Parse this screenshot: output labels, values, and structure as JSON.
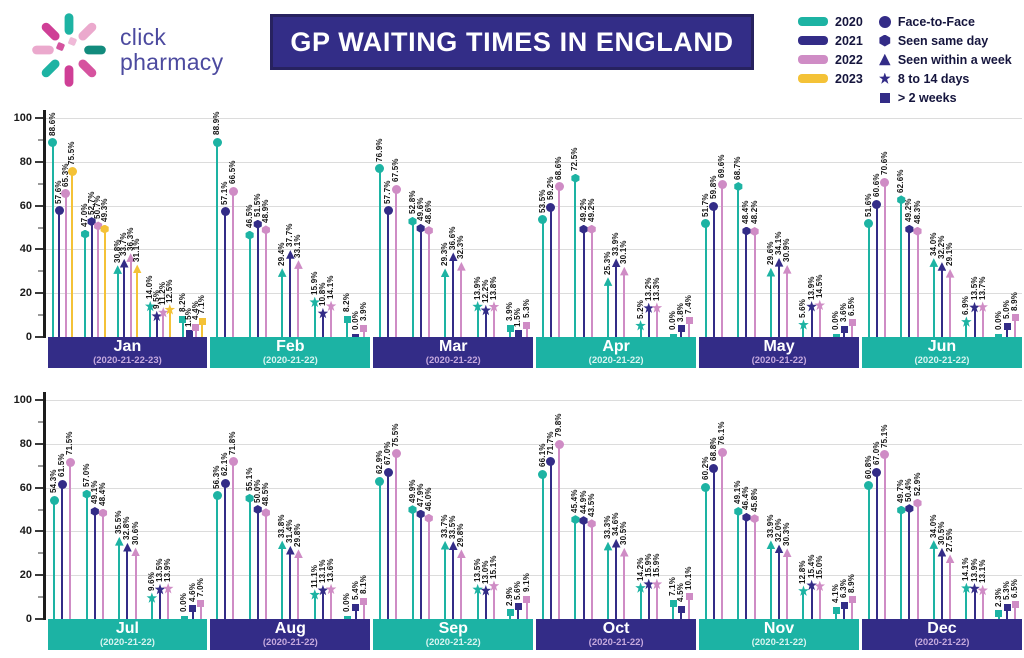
{
  "header": {
    "logo": {
      "line1": "click",
      "line2": "pharmacy"
    },
    "title": "GP WAITING TIMES IN ENGLAND",
    "legend_years": [
      {
        "label": "2020",
        "color_key": "teal"
      },
      {
        "label": "2021",
        "color_key": "navy"
      },
      {
        "label": "2022",
        "color_key": "pink"
      },
      {
        "label": "2023",
        "color_key": "yellow"
      }
    ],
    "legend_markers": [
      {
        "label": "Face-to-Face",
        "shape": "circle"
      },
      {
        "label": "Seen same day",
        "shape": "hexagon"
      },
      {
        "label": "Seen within a week",
        "shape": "triangle"
      },
      {
        "label": "8 to 14 days",
        "shape": "star"
      },
      {
        "label": "> 2 weeks",
        "shape": "square"
      }
    ]
  },
  "colors": {
    "teal": "#1db3a3",
    "navy": "#332c87",
    "pink": "#cf8cc5",
    "yellow": "#f4c237",
    "grid": "#dcdcdc",
    "bar_navy": "#332c87",
    "bar_teal": "#1cb3a4",
    "sub_on_navy": "#c5a9dd",
    "sub_on_teal": "#d8f4f0"
  },
  "chart_data": {
    "type": "bar",
    "style": "grouped lollipop stems with shaped markers",
    "title": "GP WAITING TIMES IN ENGLAND",
    "unit": "%",
    "ylim": [
      0,
      100
    ],
    "yticks": [
      0,
      20,
      40,
      60,
      80,
      100
    ],
    "grid": true,
    "legend_position": "top-right",
    "years": [
      "2020",
      "2021",
      "2022",
      "2023"
    ],
    "wait_categories": [
      "Face-to-Face",
      "Seen same day",
      "Seen within a week",
      "8 to 14 days",
      "> 2 weeks"
    ],
    "months": [
      {
        "label": "Jan",
        "sublabel": "(2020-21-22-23)",
        "bar": "navy",
        "years": [
          "2020",
          "2021",
          "2022",
          "2023"
        ],
        "values": [
          [
            88.6,
            57.6,
            65.3,
            75.5
          ],
          [
            47.0,
            52.7,
            50.7,
            49.3
          ],
          [
            30.8,
            33.7,
            36.3,
            31.1
          ],
          [
            14.0,
            9.5,
            11.2,
            12.5
          ],
          [
            8.2,
            1.5,
            4.4,
            7.1
          ]
        ]
      },
      {
        "label": "Feb",
        "sublabel": "(2020-21-22)",
        "bar": "teal",
        "years": [
          "2020",
          "2021",
          "2022"
        ],
        "values": [
          [
            88.9,
            57.1,
            66.5
          ],
          [
            46.5,
            51.5,
            48.9
          ],
          [
            29.4,
            37.7,
            33.1
          ],
          [
            15.9,
            10.8,
            14.1
          ],
          [
            8.2,
            0.0,
            3.9
          ]
        ]
      },
      {
        "label": "Mar",
        "sublabel": "(2020-21-22)",
        "bar": "navy",
        "years": [
          "2020",
          "2021",
          "2022"
        ],
        "values": [
          [
            76.9,
            57.7,
            67.5
          ],
          [
            52.8,
            49.6,
            48.6
          ],
          [
            29.3,
            36.6,
            32.3
          ],
          [
            13.9,
            12.2,
            13.8
          ],
          [
            3.9,
            1.5,
            5.3
          ]
        ]
      },
      {
        "label": "Apr",
        "sublabel": "(2020-21-22)",
        "bar": "teal",
        "years": [
          "2020",
          "2021",
          "2022"
        ],
        "values": [
          [
            53.5,
            59.2,
            68.6
          ],
          [
            72.5,
            49.2,
            49.2
          ],
          [
            25.3,
            33.9,
            30.1
          ],
          [
            5.2,
            13.2,
            13.3
          ],
          [
            0.0,
            3.8,
            7.4
          ]
        ]
      },
      {
        "label": "May",
        "sublabel": "(2020-21-22)",
        "bar": "navy",
        "years": [
          "2020",
          "2021",
          "2022"
        ],
        "values": [
          [
            51.7,
            59.8,
            69.6
          ],
          [
            68.7,
            48.4,
            48.2
          ],
          [
            29.6,
            34.1,
            30.9
          ],
          [
            5.6,
            13.9,
            14.5
          ],
          [
            0.0,
            3.6,
            6.5
          ]
        ]
      },
      {
        "label": "Jun",
        "sublabel": "(2020-21-22)",
        "bar": "teal",
        "years": [
          "2020",
          "2021",
          "2022"
        ],
        "values": [
          [
            51.6,
            60.6,
            70.6
          ],
          [
            62.6,
            49.2,
            48.3
          ],
          [
            34.0,
            32.2,
            29.1
          ],
          [
            6.9,
            13.5,
            13.7
          ],
          [
            0.0,
            5.0,
            8.9
          ]
        ]
      },
      {
        "label": "Jul",
        "sublabel": "(2020-21-22)",
        "bar": "teal",
        "years": [
          "2020",
          "2021",
          "2022"
        ],
        "values": [
          [
            54.3,
            61.5,
            71.5
          ],
          [
            57.0,
            49.1,
            48.4
          ],
          [
            35.5,
            32.8,
            30.6
          ],
          [
            9.6,
            13.5,
            13.9
          ],
          [
            0.0,
            4.6,
            7.0
          ]
        ]
      },
      {
        "label": "Aug",
        "sublabel": "(2020-21-22)",
        "bar": "navy",
        "years": [
          "2020",
          "2021",
          "2022"
        ],
        "values": [
          [
            56.3,
            62.1,
            71.8
          ],
          [
            55.1,
            50.0,
            48.5
          ],
          [
            33.8,
            31.4,
            29.8
          ],
          [
            11.1,
            13.1,
            13.6
          ],
          [
            0.0,
            5.4,
            8.1
          ]
        ]
      },
      {
        "label": "Sep",
        "sublabel": "(2020-21-22)",
        "bar": "teal",
        "years": [
          "2020",
          "2021",
          "2022"
        ],
        "values": [
          [
            62.9,
            67.0,
            75.5
          ],
          [
            49.9,
            47.9,
            46.0
          ],
          [
            33.7,
            33.5,
            29.8
          ],
          [
            13.5,
            13.0,
            15.1
          ],
          [
            2.9,
            5.6,
            9.1
          ]
        ]
      },
      {
        "label": "Oct",
        "sublabel": "(2020-21-22)",
        "bar": "navy",
        "years": [
          "2020",
          "2021",
          "2022"
        ],
        "values": [
          [
            66.1,
            71.7,
            79.8
          ],
          [
            45.4,
            44.9,
            43.5
          ],
          [
            33.3,
            34.6,
            30.5
          ],
          [
            14.2,
            15.9,
            15.9
          ],
          [
            7.1,
            4.5,
            10.1
          ]
        ]
      },
      {
        "label": "Nov",
        "sublabel": "(2020-21-22)",
        "bar": "teal",
        "years": [
          "2020",
          "2021",
          "2022"
        ],
        "values": [
          [
            60.2,
            68.8,
            76.1
          ],
          [
            49.1,
            46.4,
            45.8
          ],
          [
            33.9,
            32.0,
            30.3
          ],
          [
            12.8,
            15.4,
            15.0
          ],
          [
            4.1,
            6.3,
            8.9
          ]
        ]
      },
      {
        "label": "Dec",
        "sublabel": "(2020-21-22)",
        "bar": "navy",
        "years": [
          "2020",
          "2021",
          "2022"
        ],
        "values": [
          [
            60.8,
            67.0,
            75.1
          ],
          [
            49.7,
            50.4,
            52.9
          ],
          [
            34.0,
            30.5,
            27.5
          ],
          [
            14.1,
            13.9,
            13.1
          ],
          [
            2.3,
            5.3,
            6.5
          ]
        ]
      }
    ]
  }
}
